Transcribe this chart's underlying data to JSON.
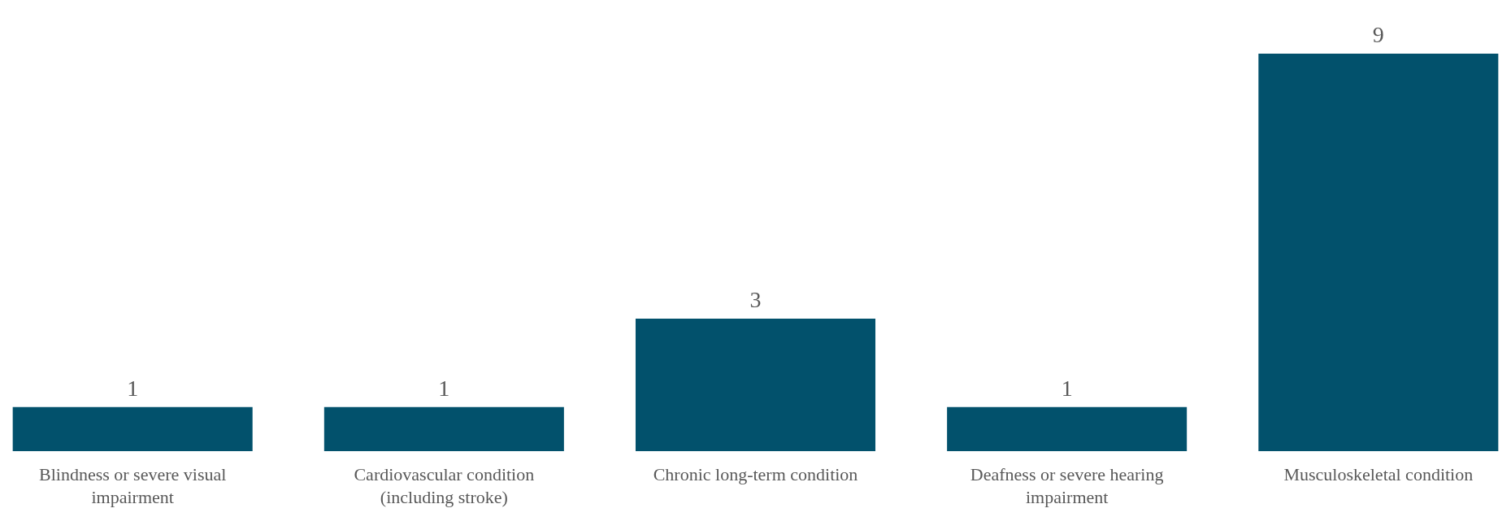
{
  "chart_data": {
    "type": "bar",
    "categories": [
      "Blindness or severe visual impairment",
      "Cardiovascular condition (including stroke)",
      "Chronic long-term condition",
      "Deafness or severe hearing impairment",
      "Musculoskeletal condition"
    ],
    "values": [
      1,
      1,
      3,
      1,
      9
    ],
    "color": "#02516c",
    "data_labels": true
  }
}
